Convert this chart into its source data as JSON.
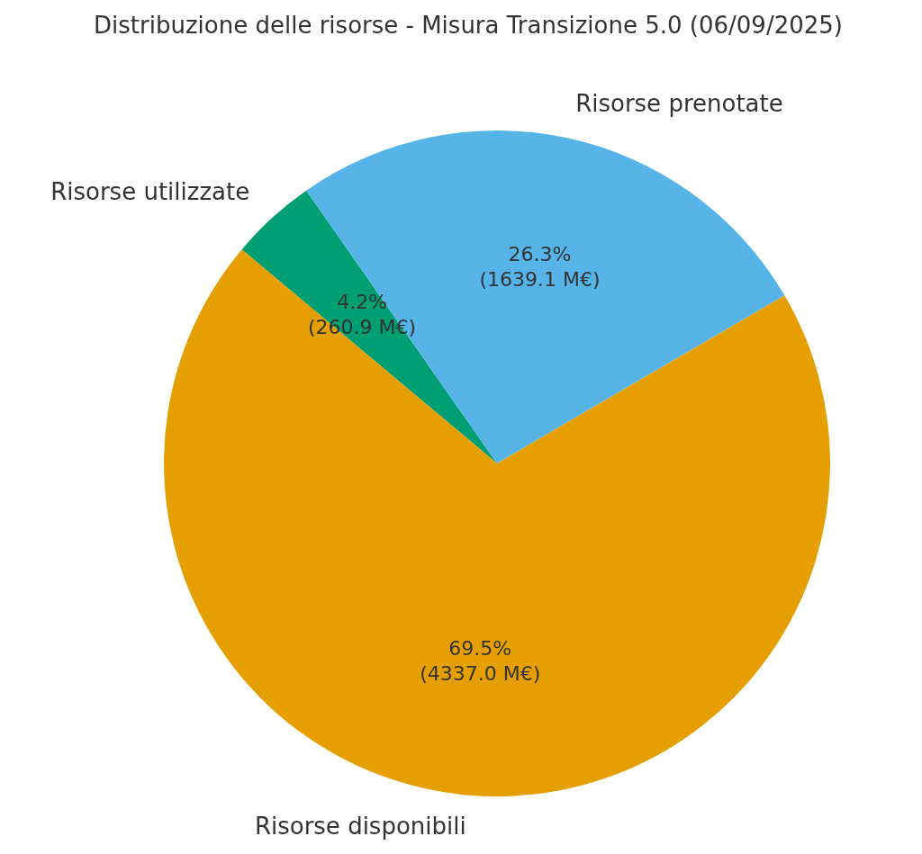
{
  "chart_data": {
    "type": "pie",
    "title": "Distribuzione delle risorse - Misura Transizione 5.0 (06/09/2025)",
    "categories": [
      "Risorse utilizzate",
      "Risorse prenotate",
      "Risorse disponibili"
    ],
    "values": [
      260.9,
      1639.1,
      4337.0
    ],
    "colors": [
      "#009e73",
      "#56b4e9",
      "#e69f00"
    ],
    "value_labels": [
      "4.2%\n(260.9 M€)",
      "26.3%\n(1639.1 M€)",
      "69.5%\n(4337.0 M€)"
    ]
  }
}
